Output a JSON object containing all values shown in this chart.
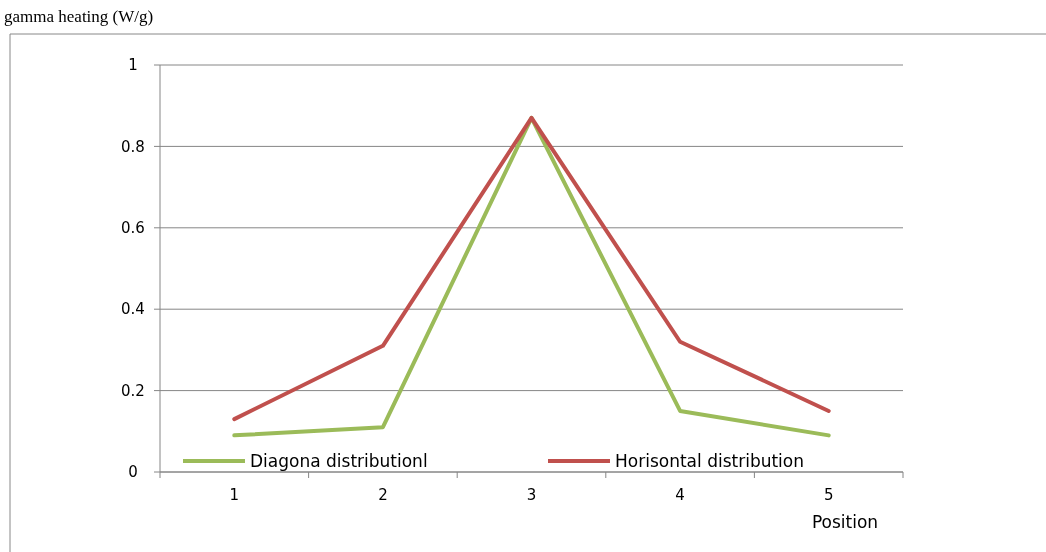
{
  "chart_data": {
    "type": "line",
    "ylabel": "gamma heating  (W/g)",
    "xlabel": "Position",
    "categories": [
      "1",
      "2",
      "3",
      "4",
      "5"
    ],
    "series": [
      {
        "name": "Diagona distributionl",
        "color": "#9bbb59",
        "values": [
          0.09,
          0.11,
          0.87,
          0.15,
          0.09
        ]
      },
      {
        "name": "Horisontal distribution",
        "color": "#c0504d",
        "values": [
          0.13,
          0.31,
          0.87,
          0.32,
          0.15
        ]
      }
    ],
    "ylim": [
      0,
      1
    ],
    "yticks": [
      0,
      0.2,
      0.4,
      0.6,
      0.8,
      1
    ],
    "grid": "y",
    "legend": "bottom",
    "marker": "none",
    "line_style": "solid"
  }
}
